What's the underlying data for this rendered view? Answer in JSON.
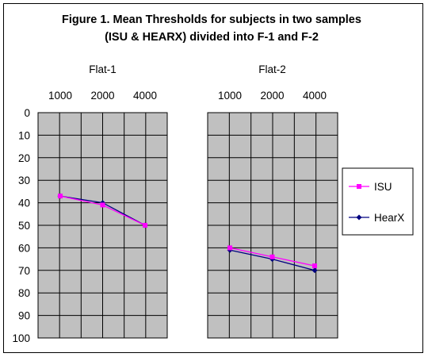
{
  "title_lines": [
    "Figure 1.  Mean Thresholds for subjects in two samples",
    "(ISU & HEARX) divided into F-1 and F-2"
  ],
  "colors": {
    "ISU": "#ff00ff",
    "HearX": "#000080",
    "plot_bg": "#c0c0c0",
    "grid": "#000000"
  },
  "chart_data": {
    "type": "line",
    "title": "Figure 1.  Mean Thresholds for subjects in two samples (ISU & HEARX) divided into F-1 and F-2",
    "y_reversed": true,
    "ylim": [
      0,
      100
    ],
    "y_ticks": [
      "0",
      "10",
      "20",
      "30",
      "40",
      "50",
      "60",
      "70",
      "80",
      "90",
      "100"
    ],
    "grid": true,
    "legend_position": "right",
    "legend": [
      "ISU",
      "HearX"
    ],
    "panels": [
      {
        "title": "Flat-1",
        "categories": [
          "1000",
          "2000",
          "4000"
        ],
        "series": [
          {
            "name": "ISU",
            "marker": "square",
            "values": [
              37,
              41,
              50
            ]
          },
          {
            "name": "HearX",
            "marker": "diamond",
            "values": [
              37,
              40,
              50
            ]
          }
        ]
      },
      {
        "title": "Flat-2",
        "categories": [
          "1000",
          "2000",
          "4000"
        ],
        "series": [
          {
            "name": "ISU",
            "marker": "square",
            "values": [
              60,
              64,
              68
            ]
          },
          {
            "name": "HearX",
            "marker": "diamond",
            "values": [
              61,
              65,
              70
            ]
          }
        ]
      }
    ]
  }
}
